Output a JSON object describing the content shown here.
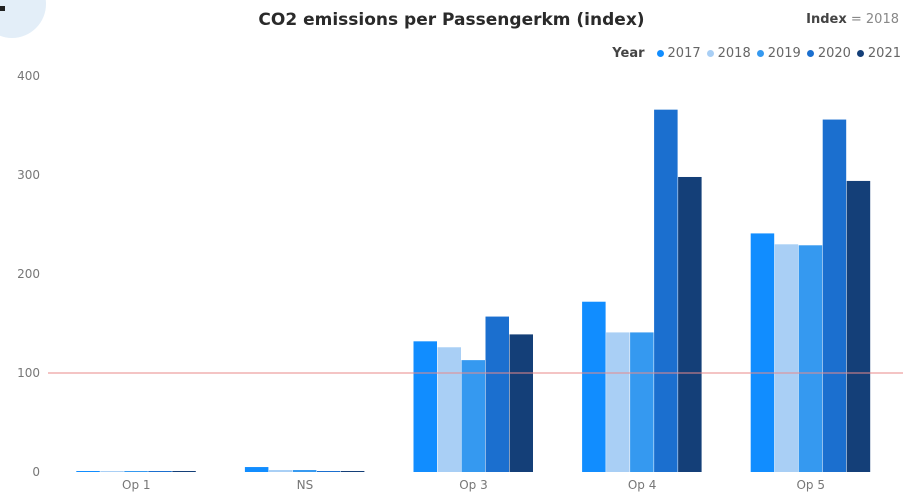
{
  "index_note": {
    "label": "Index",
    "value": "= 2018"
  },
  "legend": {
    "title": "Year"
  },
  "chart_data": {
    "type": "bar",
    "title": "CO2 emissions per Passengerkm (index)",
    "xlabel": "",
    "ylabel": "",
    "categories": [
      "Op 1",
      "NS",
      "Op 3",
      "Op 4",
      "Op 5"
    ],
    "series": [
      {
        "name": "2017",
        "color": "#118dff",
        "values": [
          1,
          5,
          132,
          172,
          241
        ]
      },
      {
        "name": "2018",
        "color": "#a9cff5",
        "values": [
          1,
          2,
          126,
          141,
          230
        ]
      },
      {
        "name": "2019",
        "color": "#3599f0",
        "values": [
          1,
          2,
          113,
          141,
          229
        ]
      },
      {
        "name": "2020",
        "color": "#1b6fcf",
        "values": [
          1,
          1,
          157,
          366,
          356
        ]
      },
      {
        "name": "2021",
        "color": "#143f78",
        "values": [
          1,
          1,
          139,
          298,
          294
        ]
      }
    ],
    "ylim": [
      0,
      400
    ],
    "yticks": [
      0,
      100,
      200,
      300,
      400
    ],
    "reference_line": {
      "value": 100,
      "color": "#e88a8a"
    },
    "grid": false,
    "legend_position": "top-right"
  }
}
